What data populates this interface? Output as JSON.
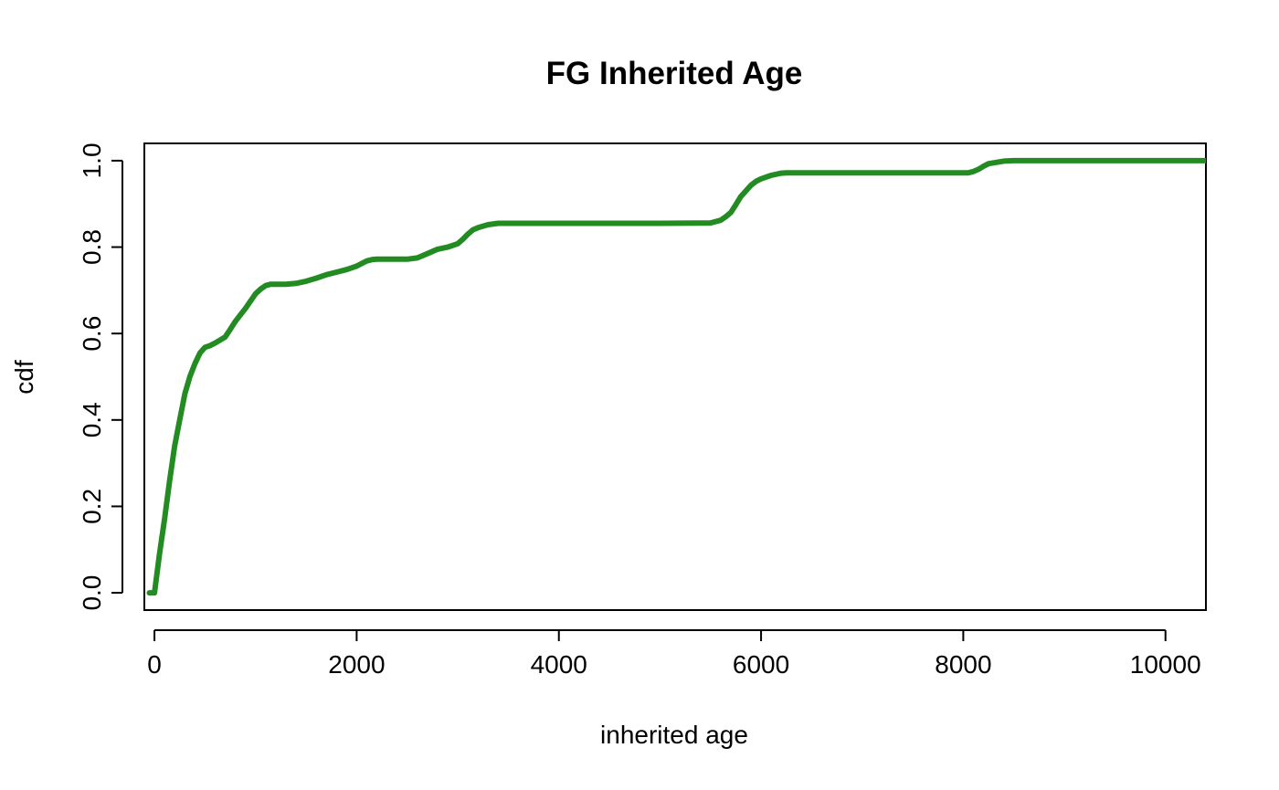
{
  "chart_data": {
    "type": "line",
    "title": "FG Inherited Age",
    "xlabel": "inherited age",
    "ylabel": "cdf",
    "xlim": [
      -100,
      10400
    ],
    "ylim": [
      -0.04,
      1.04
    ],
    "x_ticks": [
      0,
      2000,
      4000,
      6000,
      8000,
      10000
    ],
    "x_tick_labels": [
      "0",
      "2000",
      "4000",
      "6000",
      "8000",
      "10000"
    ],
    "y_ticks": [
      0.0,
      0.2,
      0.4,
      0.6,
      0.8,
      1.0
    ],
    "y_tick_labels": [
      "0.0",
      "0.2",
      "0.4",
      "0.6",
      "0.8",
      "1.0"
    ],
    "grid": false,
    "legend": "none",
    "series": [
      {
        "color": "#228B22",
        "x": [
          -50,
          0,
          50,
          100,
          150,
          200,
          250,
          300,
          350,
          400,
          450,
          500,
          550,
          600,
          650,
          700,
          750,
          800,
          850,
          900,
          950,
          1000,
          1050,
          1100,
          1150,
          1200,
          1250,
          1300,
          1400,
          1500,
          1600,
          1700,
          1800,
          1900,
          2000,
          2050,
          2100,
          2150,
          2200,
          2300,
          2400,
          2500,
          2600,
          2700,
          2800,
          2900,
          3000,
          3050,
          3100,
          3150,
          3200,
          3300,
          3400,
          3500,
          4000,
          4500,
          5000,
          5500,
          5600,
          5650,
          5700,
          5750,
          5800,
          5850,
          5900,
          5950,
          6000,
          6100,
          6200,
          6250,
          6300,
          7000,
          7500,
          8000,
          8050,
          8100,
          8150,
          8200,
          8250,
          8300,
          8400,
          8500,
          9000,
          9500,
          10000,
          10400
        ],
        "y": [
          0.0,
          0.0,
          0.09,
          0.17,
          0.26,
          0.34,
          0.4,
          0.46,
          0.5,
          0.53,
          0.555,
          0.568,
          0.572,
          0.578,
          0.585,
          0.592,
          0.61,
          0.628,
          0.643,
          0.658,
          0.675,
          0.692,
          0.703,
          0.711,
          0.714,
          0.714,
          0.714,
          0.714,
          0.716,
          0.721,
          0.728,
          0.736,
          0.742,
          0.748,
          0.756,
          0.762,
          0.768,
          0.771,
          0.772,
          0.772,
          0.772,
          0.772,
          0.775,
          0.785,
          0.795,
          0.8,
          0.808,
          0.818,
          0.83,
          0.84,
          0.845,
          0.852,
          0.855,
          0.855,
          0.855,
          0.855,
          0.855,
          0.856,
          0.862,
          0.87,
          0.88,
          0.898,
          0.917,
          0.93,
          0.943,
          0.952,
          0.958,
          0.966,
          0.971,
          0.972,
          0.972,
          0.972,
          0.972,
          0.972,
          0.972,
          0.975,
          0.98,
          0.987,
          0.993,
          0.995,
          0.999,
          1.0,
          1.0,
          1.0,
          1.0,
          1.0
        ]
      }
    ]
  }
}
